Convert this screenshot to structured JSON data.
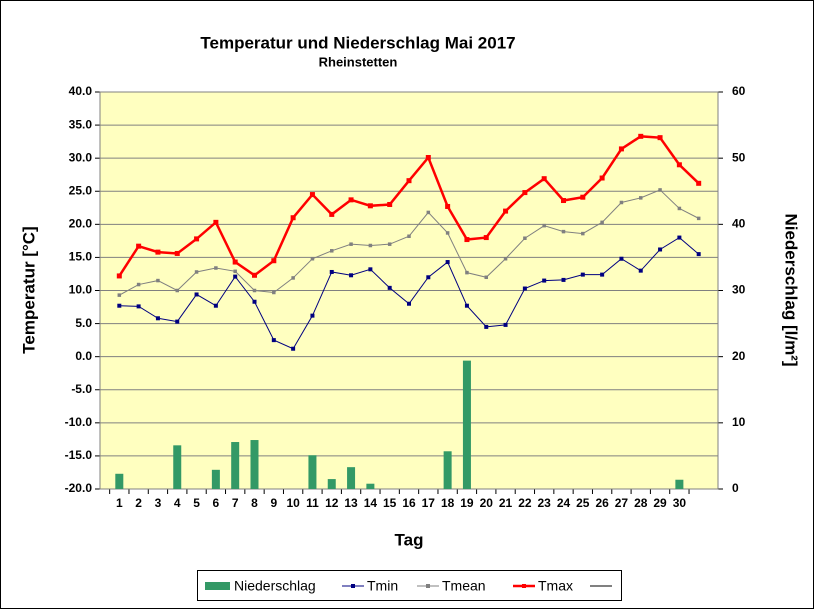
{
  "chart_data": {
    "type": "line",
    "title": "Temperatur und Niederschlag  Mai 2017",
    "subtitle": "Rheinstetten",
    "x_label": "Tag",
    "y_label": "Temperatur [°C]",
    "y2_label": "Niederschlag [l/m²]",
    "categories": [
      "1",
      "2",
      "3",
      "4",
      "5",
      "6",
      "7",
      "8",
      "9",
      "10",
      "11",
      "12",
      "13",
      "14",
      "15",
      "16",
      "17",
      "18",
      "19",
      "20",
      "21",
      "22",
      "23",
      "24",
      "25",
      "26",
      "27",
      "28",
      "29",
      "30",
      null
    ],
    "ylim": [
      -20,
      40
    ],
    "yticks": [
      {
        "value": -20,
        "label": "-20.0"
      },
      {
        "value": -15,
        "label": "-15.0"
      },
      {
        "value": -10,
        "label": "-10.0"
      },
      {
        "value": -5,
        "label": "-5.0"
      },
      {
        "value": 0,
        "label": "0.0"
      },
      {
        "value": 5,
        "label": "5.0"
      },
      {
        "value": 10,
        "label": "10.0"
      },
      {
        "value": 15,
        "label": "15.0"
      },
      {
        "value": 20,
        "label": "20.0"
      },
      {
        "value": 25,
        "label": "25.0"
      },
      {
        "value": 30,
        "label": "30.0"
      },
      {
        "value": 35,
        "label": "35.0"
      },
      {
        "value": 40,
        "label": "40.0"
      }
    ],
    "y2lim": [
      0,
      60
    ],
    "y2ticks": [
      0,
      10,
      20,
      30,
      40,
      50,
      60
    ],
    "grid": true,
    "series": [
      {
        "name": "Niederschlag",
        "type": "bar",
        "axis": "y2",
        "color": "#339966",
        "values": [
          2.3,
          0,
          0,
          6.6,
          0,
          2.9,
          7.1,
          7.4,
          0,
          0,
          5.1,
          1.5,
          3.3,
          0.8,
          0,
          0,
          0,
          5.7,
          19.4,
          0,
          0,
          0,
          0,
          0,
          0,
          0,
          0,
          0,
          0,
          1.4,
          null
        ]
      },
      {
        "name": "Tmin",
        "type": "line",
        "color": "#000080",
        "values": [
          7.7,
          7.6,
          5.8,
          5.3,
          9.4,
          7.7,
          12.1,
          8.3,
          2.5,
          1.2,
          6.2,
          12.8,
          12.3,
          13.2,
          10.4,
          8.0,
          12.0,
          14.3,
          7.7,
          4.5,
          4.8,
          10.3,
          11.5,
          11.6,
          12.4,
          12.4,
          14.8,
          13.0,
          16.2,
          18.0,
          15.5
        ]
      },
      {
        "name": "Tmean",
        "type": "line",
        "color": "#808080",
        "values": [
          9.3,
          10.9,
          11.5,
          10.0,
          12.8,
          13.4,
          12.9,
          10.0,
          9.7,
          11.9,
          14.8,
          16.0,
          17.0,
          16.8,
          17.0,
          18.2,
          21.8,
          18.7,
          12.7,
          12.0,
          14.8,
          17.9,
          19.8,
          18.9,
          18.6,
          20.3,
          23.3,
          24.0,
          25.2,
          22.4,
          20.9
        ]
      },
      {
        "name": "Tmax",
        "type": "line",
        "color": "#ff0000",
        "values": [
          12.2,
          16.7,
          15.8,
          15.6,
          17.8,
          20.3,
          14.3,
          12.3,
          14.5,
          21.0,
          24.5,
          21.5,
          23.7,
          22.8,
          23.0,
          26.6,
          30.1,
          22.7,
          17.7,
          18.0,
          22.0,
          24.8,
          26.9,
          23.6,
          24.1,
          27.0,
          31.4,
          33.3,
          33.1,
          29.0,
          26.2
        ]
      }
    ]
  }
}
